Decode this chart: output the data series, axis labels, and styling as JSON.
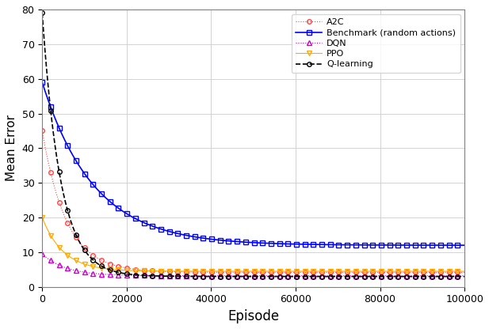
{
  "title": "",
  "xlabel": "Episode",
  "ylabel": "Mean Error",
  "xlim": [
    0,
    100000
  ],
  "ylim": [
    0,
    80
  ],
  "xticks": [
    0,
    20000,
    40000,
    60000,
    80000,
    100000
  ],
  "yticks": [
    0,
    10,
    20,
    30,
    40,
    50,
    60,
    70,
    80
  ],
  "series": {
    "A2C": {
      "color": "#ff4444",
      "linestyle": ":",
      "marker": "o",
      "markersize": 4,
      "linewidth": 0.8,
      "start": 45,
      "end": 4.2,
      "decay": 0.000175,
      "noise": 0.0
    },
    "Benchmark": {
      "color": "#0000ff",
      "linestyle": "-",
      "marker": "s",
      "markersize": 5,
      "linewidth": 1.2,
      "start": 59,
      "end": 12.0,
      "decay": 8.2e-05,
      "noise": 0.0
    },
    "DQN": {
      "color": "#cc00cc",
      "linestyle": ":",
      "marker": "^",
      "markersize": 4,
      "linewidth": 0.8,
      "start": 9.5,
      "end": 3.2,
      "decay": 0.00018,
      "noise": 0.0
    },
    "PPO": {
      "color": "#ffaa00",
      "linestyle": "-",
      "marker": "v",
      "markersize": 4,
      "linewidth": 0.8,
      "start": 20,
      "end": 4.5,
      "decay": 0.0002,
      "noise": 0.0
    },
    "Q-learning": {
      "color": "#000000",
      "linestyle": "--",
      "marker": "o",
      "markersize": 4,
      "linewidth": 1.2,
      "start": 79,
      "end": 3.0,
      "decay": 0.00023,
      "noise": 0.0
    }
  },
  "legend_labels": [
    "A2C",
    "Benchmark (random actions)",
    "DQN",
    "PPO",
    "Q-learning"
  ],
  "figsize": [
    6.17,
    4.16
  ],
  "dpi": 100
}
